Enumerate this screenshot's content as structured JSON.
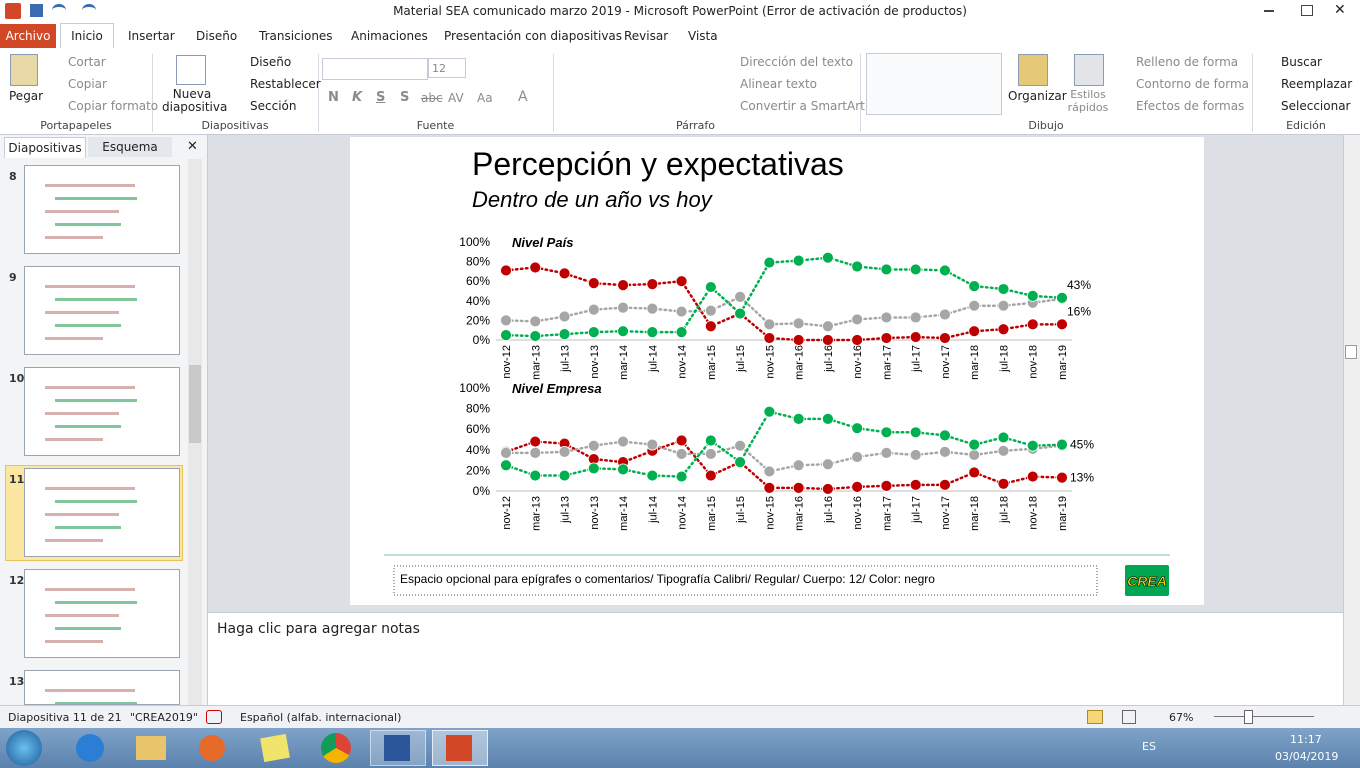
{
  "window": {
    "title": "Material SEA comunicado marzo 2019  -  Microsoft PowerPoint (Error de activación de productos)"
  },
  "tabs": [
    "Archivo",
    "Inicio",
    "Insertar",
    "Diseño",
    "Transiciones",
    "Animaciones",
    "Presentación con diapositivas",
    "Revisar",
    "Vista"
  ],
  "ribbon": {
    "portapapeles": {
      "label": "Portapapeles",
      "buttons": [
        "Pegar",
        "Cortar",
        "Copiar",
        "Copiar formato"
      ]
    },
    "diapositivas": {
      "label": "Diapositivas",
      "buttons": [
        "Nueva diapositiva",
        "Diseño",
        "Restablecer",
        "Sección"
      ]
    },
    "fuente": {
      "label": "Fuente",
      "size": "12",
      "buttons": [
        "N",
        "K",
        "S",
        "S",
        "abc",
        "AV",
        "Aa",
        "A"
      ]
    },
    "parrafo": {
      "label": "Párrafo",
      "buttons": [
        "Dirección del texto",
        "Alinear texto",
        "Convertir a SmartArt"
      ]
    },
    "dibujo": {
      "label": "Dibujo",
      "buttons": [
        "Organizar",
        "Estilos rápidos",
        "Relleno de forma",
        "Contorno de forma",
        "Efectos de formas"
      ]
    },
    "edicion": {
      "label": "Edición",
      "buttons": [
        "Buscar",
        "Reemplazar",
        "Seleccionar"
      ]
    }
  },
  "panel": {
    "tabs": [
      "Diapositivas",
      "Esquema"
    ],
    "slides": [
      "8",
      "9",
      "10",
      "11",
      "12",
      "13"
    ]
  },
  "slide": {
    "title": "Percepción y expectativas",
    "subtitle": "Dentro de un año vs hoy",
    "caption": "Espacio opcional para epígrafes o comentarios/ Tipografía Calibri/ Regular/ Cuerpo: 12/ Color: negro",
    "logo": "CREA"
  },
  "chart_data": [
    {
      "type": "line",
      "title": "Nivel País",
      "line_style": "dotted",
      "categories": [
        "nov-12",
        "mar-13",
        "jul-13",
        "nov-13",
        "mar-14",
        "jul-14",
        "nov-14",
        "mar-15",
        "jul-15",
        "nov-15",
        "mar-16",
        "jul-16",
        "nov-16",
        "mar-17",
        "jul-17",
        "nov-17",
        "mar-18",
        "jul-18",
        "nov-18",
        "mar-19"
      ],
      "ylim": [
        0,
        100
      ],
      "yticks": [
        {
          "value": 0,
          "label": "0%"
        },
        {
          "value": 20,
          "label": "20%"
        },
        {
          "value": 40,
          "label": "40%"
        },
        {
          "value": 60,
          "label": "60%"
        },
        {
          "value": 80,
          "label": "80%"
        },
        {
          "value": 100,
          "label": "100%"
        }
      ],
      "series": [
        {
          "color": "#c00000",
          "values": [
            71,
            74,
            68,
            58,
            56,
            57,
            60,
            14,
            27,
            2,
            0,
            0,
            0,
            2,
            3,
            2,
            9,
            11,
            16,
            16
          ],
          "value_labels": [
            null,
            null,
            null,
            null,
            null,
            null,
            null,
            null,
            null,
            null,
            null,
            null,
            null,
            null,
            null,
            null,
            null,
            null,
            null,
            "16%"
          ]
        },
        {
          "color": "#a6a6a6",
          "values": [
            20,
            19,
            24,
            31,
            33,
            32,
            29,
            30,
            44,
            16,
            17,
            14,
            21,
            23,
            23,
            26,
            35,
            35,
            38,
            42
          ]
        },
        {
          "color": "#00b050",
          "values": [
            5,
            4,
            6,
            8,
            9,
            8,
            8,
            54,
            27,
            79,
            81,
            84,
            75,
            72,
            72,
            71,
            55,
            52,
            45,
            43
          ],
          "value_labels": [
            null,
            null,
            null,
            null,
            null,
            null,
            null,
            null,
            null,
            null,
            null,
            null,
            null,
            null,
            null,
            null,
            null,
            null,
            null,
            "43%"
          ]
        }
      ]
    },
    {
      "type": "line",
      "title": "Nivel Empresa",
      "line_style": "dotted",
      "categories": [
        "nov-12",
        "mar-13",
        "jul-13",
        "nov-13",
        "mar-14",
        "jul-14",
        "nov-14",
        "mar-15",
        "jul-15",
        "nov-15",
        "mar-16",
        "jul-16",
        "nov-16",
        "mar-17",
        "jul-17",
        "nov-17",
        "mar-18",
        "jul-18",
        "nov-18",
        "mar-19"
      ],
      "ylim": [
        0,
        100
      ],
      "yticks": [
        {
          "value": 0,
          "label": "0%"
        },
        {
          "value": 20,
          "label": "20%"
        },
        {
          "value": 40,
          "label": "40%"
        },
        {
          "value": 60,
          "label": "60%"
        },
        {
          "value": 80,
          "label": "80%"
        },
        {
          "value": 100,
          "label": "100%"
        }
      ],
      "series": [
        {
          "color": "#c00000",
          "values": [
            38,
            48,
            46,
            31,
            28,
            39,
            49,
            15,
            28,
            3,
            3,
            2,
            4,
            5,
            6,
            6,
            18,
            7,
            14,
            13
          ],
          "value_labels": [
            null,
            null,
            null,
            null,
            null,
            null,
            null,
            null,
            null,
            null,
            null,
            null,
            null,
            null,
            null,
            null,
            null,
            null,
            null,
            "13%"
          ]
        },
        {
          "color": "#a6a6a6",
          "values": [
            37,
            37,
            38,
            44,
            48,
            45,
            36,
            36,
            44,
            19,
            25,
            26,
            33,
            37,
            35,
            38,
            35,
            39,
            41,
            44
          ]
        },
        {
          "color": "#00b050",
          "values": [
            25,
            15,
            15,
            22,
            21,
            15,
            14,
            49,
            28,
            77,
            70,
            70,
            61,
            57,
            57,
            54,
            45,
            52,
            44,
            45
          ],
          "value_labels": [
            null,
            null,
            null,
            null,
            null,
            null,
            null,
            null,
            null,
            null,
            null,
            null,
            null,
            null,
            null,
            null,
            null,
            null,
            null,
            "45%"
          ]
        }
      ]
    }
  ],
  "notes": "Haga clic para agregar notas",
  "status": {
    "slide": "Diapositiva 11 de 21",
    "theme": "\"CREA2019\"",
    "language": "Español (alfab. internacional)",
    "zoom": "67%"
  },
  "taskbar": {
    "lang": "ES",
    "time": "11:17",
    "date": "03/04/2019"
  }
}
